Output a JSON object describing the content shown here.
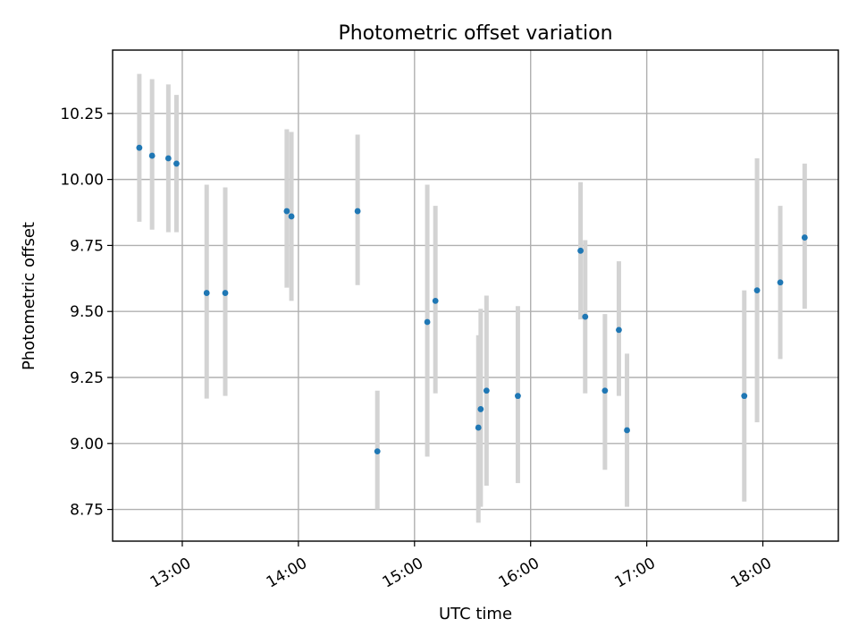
{
  "chart_data": {
    "type": "scatter",
    "title": "Photometric offset variation",
    "xlabel": "UTC time",
    "ylabel": "Photometric offset",
    "x_unit": "UTC hours",
    "xlim": [
      12.4,
      18.65
    ],
    "ylim": [
      8.63,
      10.49
    ],
    "grid": true,
    "legend": "none",
    "x_ticks": [
      {
        "value": 13,
        "label": "13:00"
      },
      {
        "value": 14,
        "label": "14:00"
      },
      {
        "value": 15,
        "label": "15:00"
      },
      {
        "value": 16,
        "label": "16:00"
      },
      {
        "value": 17,
        "label": "17:00"
      },
      {
        "value": 18,
        "label": "18:00"
      }
    ],
    "y_ticks": [
      {
        "value": 8.75,
        "label": "8.75"
      },
      {
        "value": 9.0,
        "label": "9.00"
      },
      {
        "value": 9.25,
        "label": "9.25"
      },
      {
        "value": 9.5,
        "label": "9.50"
      },
      {
        "value": 9.75,
        "label": "9.75"
      },
      {
        "value": 10.0,
        "label": "10.00"
      },
      {
        "value": 10.25,
        "label": "10.25"
      }
    ],
    "colors": {
      "point": "#1f77b4",
      "errorbar": "#d3d3d3"
    },
    "points": [
      {
        "x": 12.63,
        "y": 10.12,
        "ylow": 9.84,
        "yhigh": 10.4
      },
      {
        "x": 12.74,
        "y": 10.09,
        "ylow": 9.81,
        "yhigh": 10.38
      },
      {
        "x": 12.88,
        "y": 10.08,
        "ylow": 9.8,
        "yhigh": 10.36
      },
      {
        "x": 12.95,
        "y": 10.06,
        "ylow": 9.8,
        "yhigh": 10.32
      },
      {
        "x": 13.21,
        "y": 9.57,
        "ylow": 9.17,
        "yhigh": 9.98
      },
      {
        "x": 13.37,
        "y": 9.57,
        "ylow": 9.18,
        "yhigh": 9.97
      },
      {
        "x": 13.9,
        "y": 9.88,
        "ylow": 9.59,
        "yhigh": 10.19
      },
      {
        "x": 13.94,
        "y": 9.86,
        "ylow": 9.54,
        "yhigh": 10.18
      },
      {
        "x": 14.51,
        "y": 9.88,
        "ylow": 9.6,
        "yhigh": 10.17
      },
      {
        "x": 14.68,
        "y": 8.97,
        "ylow": 8.75,
        "yhigh": 9.2
      },
      {
        "x": 15.11,
        "y": 9.46,
        "ylow": 8.95,
        "yhigh": 9.98
      },
      {
        "x": 15.18,
        "y": 9.54,
        "ylow": 9.19,
        "yhigh": 9.9
      },
      {
        "x": 15.55,
        "y": 9.06,
        "ylow": 8.7,
        "yhigh": 9.41
      },
      {
        "x": 15.57,
        "y": 9.13,
        "ylow": 8.76,
        "yhigh": 9.51
      },
      {
        "x": 15.62,
        "y": 9.2,
        "ylow": 8.84,
        "yhigh": 9.56
      },
      {
        "x": 15.89,
        "y": 9.18,
        "ylow": 8.85,
        "yhigh": 9.52
      },
      {
        "x": 16.43,
        "y": 9.73,
        "ylow": 9.47,
        "yhigh": 9.99
      },
      {
        "x": 16.47,
        "y": 9.48,
        "ylow": 9.19,
        "yhigh": 9.77
      },
      {
        "x": 16.64,
        "y": 9.2,
        "ylow": 8.9,
        "yhigh": 9.49
      },
      {
        "x": 16.76,
        "y": 9.43,
        "ylow": 9.18,
        "yhigh": 9.69
      },
      {
        "x": 16.83,
        "y": 9.05,
        "ylow": 8.76,
        "yhigh": 9.34
      },
      {
        "x": 17.84,
        "y": 9.18,
        "ylow": 8.78,
        "yhigh": 9.58
      },
      {
        "x": 17.95,
        "y": 9.58,
        "ylow": 9.08,
        "yhigh": 10.08
      },
      {
        "x": 18.15,
        "y": 9.61,
        "ylow": 9.32,
        "yhigh": 9.9
      },
      {
        "x": 18.36,
        "y": 9.78,
        "ylow": 9.51,
        "yhigh": 10.06
      }
    ]
  }
}
